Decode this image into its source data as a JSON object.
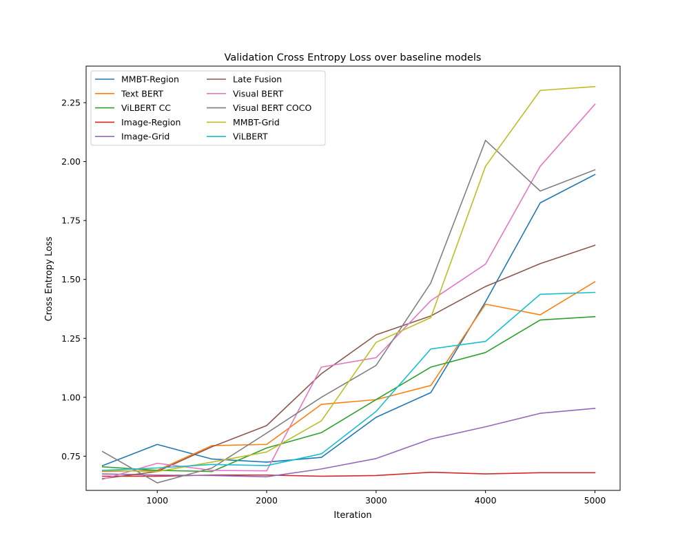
{
  "chart_data": {
    "type": "line",
    "title": "Validation Cross Entropy Loss over baseline models",
    "xlabel": "Iteration",
    "ylabel": "Cross Entropy Loss",
    "x": [
      500,
      1000,
      1500,
      2000,
      2500,
      3000,
      3500,
      4000,
      4500,
      5000
    ],
    "xlim": [
      350,
      5230
    ],
    "ylim": [
      0.605,
      2.405
    ],
    "xticks": [
      1000,
      2000,
      3000,
      4000,
      5000
    ],
    "yticks": [
      0.75,
      1.0,
      1.25,
      1.5,
      1.75,
      2.0,
      2.25
    ],
    "xtick_labels": [
      "1000",
      "2000",
      "3000",
      "4000",
      "5000"
    ],
    "ytick_labels": [
      "0.75",
      "1.00",
      "1.25",
      "1.50",
      "1.75",
      "2.00",
      "2.25"
    ],
    "grid": false,
    "legend_position": "upper-left",
    "legend_columns": 2,
    "series": [
      {
        "name": "MMBT-Region",
        "color": "#1f77b4",
        "values": [
          0.71,
          0.8,
          0.738,
          0.725,
          0.745,
          0.915,
          1.02,
          1.405,
          1.825,
          1.945
        ]
      },
      {
        "name": "Text BERT",
        "color": "#ff7f0e",
        "values": [
          0.685,
          0.69,
          0.795,
          0.8,
          0.97,
          0.99,
          1.05,
          1.395,
          1.35,
          1.49
        ]
      },
      {
        "name": "ViLBERT CC",
        "color": "#2ca02c",
        "values": [
          0.705,
          0.69,
          0.685,
          0.785,
          0.85,
          0.99,
          1.128,
          1.19,
          1.328,
          1.342
        ]
      },
      {
        "name": "Image-Region",
        "color": "#d62728",
        "values": [
          0.665,
          0.665,
          0.67,
          0.67,
          0.665,
          0.668,
          0.682,
          0.675,
          0.68,
          0.68
        ]
      },
      {
        "name": "Image-Grid",
        "color": "#9467bd",
        "values": [
          0.675,
          0.67,
          0.668,
          0.663,
          0.696,
          0.74,
          0.823,
          0.875,
          0.932,
          0.953
        ]
      },
      {
        "name": "Late Fusion",
        "color": "#8c564b",
        "values": [
          0.655,
          0.685,
          0.79,
          0.88,
          1.1,
          1.265,
          1.345,
          1.47,
          1.567,
          1.645
        ]
      },
      {
        "name": "Visual BERT",
        "color": "#e377c2",
        "values": [
          0.652,
          0.72,
          0.69,
          0.688,
          1.128,
          1.168,
          1.41,
          1.565,
          1.98,
          2.243
        ]
      },
      {
        "name": "Visual BERT COCO",
        "color": "#7f7f7f",
        "values": [
          0.77,
          0.637,
          0.7,
          0.848,
          1.0,
          1.135,
          1.485,
          2.09,
          1.875,
          1.965
        ]
      },
      {
        "name": "MMBT-Grid",
        "color": "#bcbd22",
        "values": [
          0.69,
          0.685,
          0.725,
          0.768,
          0.9,
          1.233,
          1.338,
          1.98,
          2.302,
          2.318
        ]
      },
      {
        "name": "ViLBERT",
        "color": "#17becf",
        "values": [
          0.69,
          0.7,
          0.715,
          0.71,
          0.76,
          0.94,
          1.205,
          1.237,
          1.437,
          1.445
        ]
      }
    ]
  }
}
